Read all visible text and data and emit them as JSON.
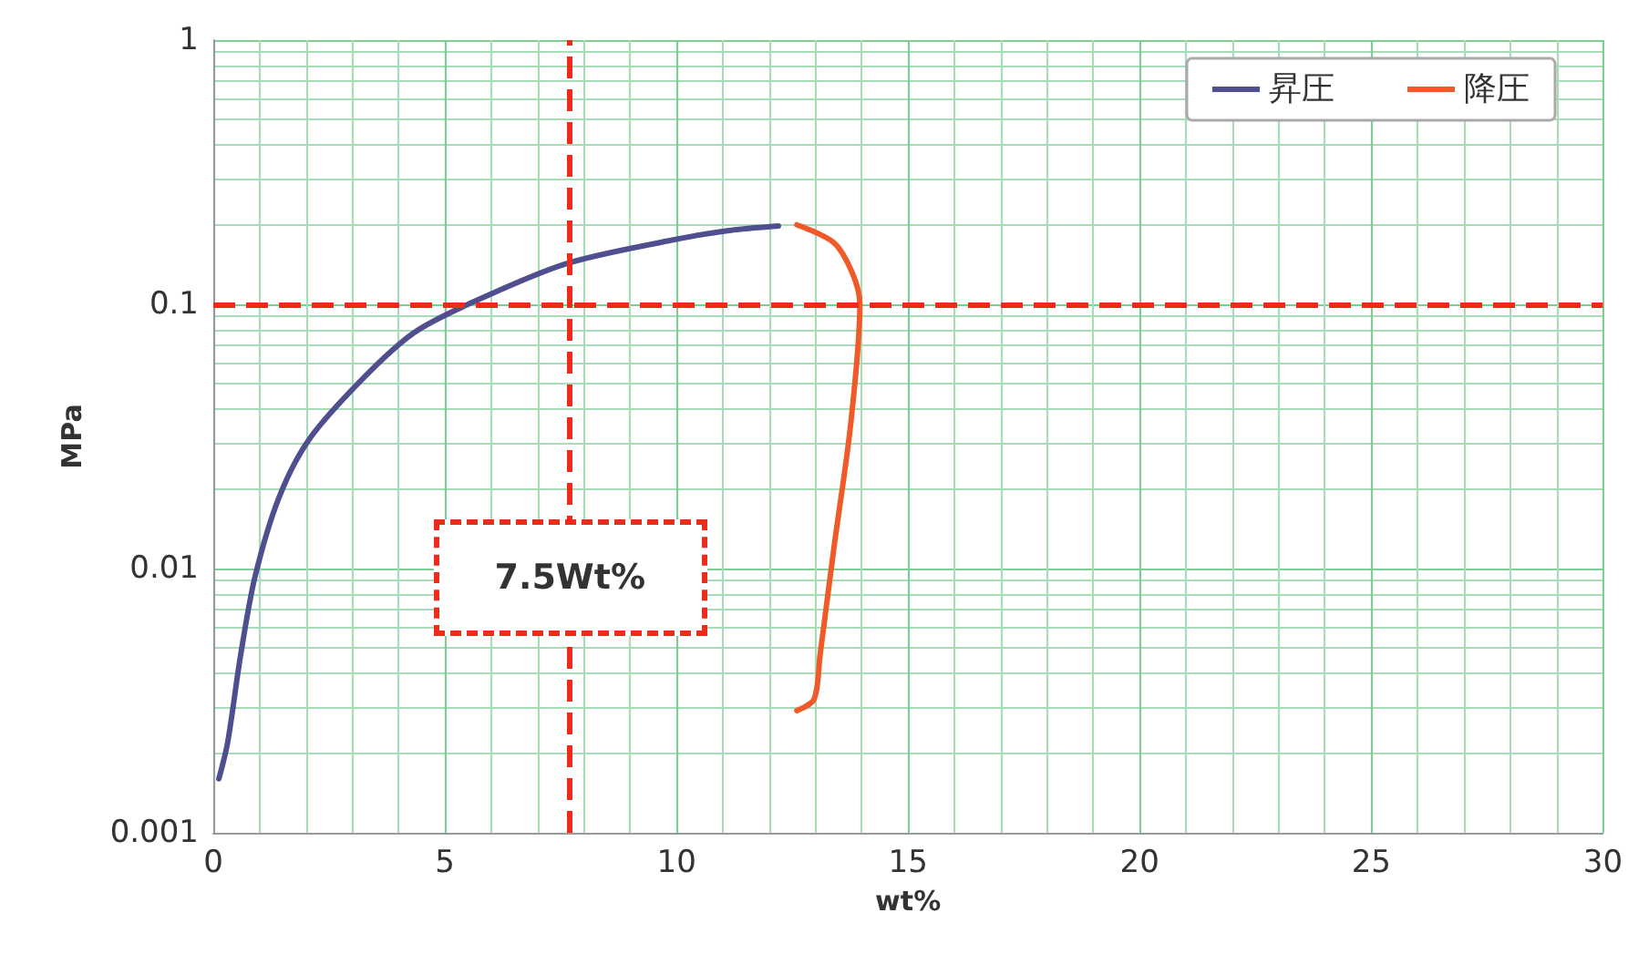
{
  "chart_data": {
    "type": "line",
    "xlabel": "wt%",
    "ylabel": "MPa",
    "log": "y",
    "grid": true,
    "legend": "top right",
    "marker": "none",
    "line_style": "solid",
    "xlim": [
      0,
      30
    ],
    "xticks": [
      0,
      {
        "value": 1,
        "label": null
      },
      {
        "value": 2,
        "label": null
      },
      {
        "value": 3,
        "label": null
      },
      {
        "value": 4,
        "label": null
      },
      5,
      {
        "value": 6,
        "label": null
      },
      {
        "value": 7,
        "label": null
      },
      {
        "value": 8,
        "label": null
      },
      {
        "value": 9,
        "label": null
      },
      10,
      {
        "value": 11,
        "label": null
      },
      {
        "value": 12,
        "label": null
      },
      {
        "value": 13,
        "label": null
      },
      {
        "value": 14,
        "label": null
      },
      15,
      {
        "value": 16,
        "label": null
      },
      {
        "value": 17,
        "label": null
      },
      {
        "value": 18,
        "label": null
      },
      {
        "value": 19,
        "label": null
      },
      20,
      {
        "value": 21,
        "label": null
      },
      {
        "value": 22,
        "label": null
      },
      {
        "value": 23,
        "label": null
      },
      {
        "value": 24,
        "label": null
      },
      25,
      {
        "value": 26,
        "label": null
      },
      {
        "value": 27,
        "label": null
      },
      {
        "value": 28,
        "label": null
      },
      {
        "value": 29,
        "label": null
      },
      30
    ],
    "ylim": [
      0.001,
      1
    ],
    "yticks": [
      0.001,
      {
        "value": 0.002,
        "label": null
      },
      {
        "value": 0.003,
        "label": null
      },
      {
        "value": 0.004,
        "label": null
      },
      {
        "value": 0.005,
        "label": null
      },
      {
        "value": 0.006,
        "label": null
      },
      {
        "value": 0.007,
        "label": null
      },
      {
        "value": 0.008,
        "label": null
      },
      {
        "value": 0.009,
        "label": null
      },
      0.01,
      {
        "value": 0.02,
        "label": null
      },
      {
        "value": 0.03,
        "label": null
      },
      {
        "value": 0.04,
        "label": null
      },
      {
        "value": 0.05,
        "label": null
      },
      {
        "value": 0.06,
        "label": null
      },
      {
        "value": 0.07,
        "label": null
      },
      {
        "value": 0.08,
        "label": null
      },
      {
        "value": 0.09,
        "label": null
      },
      0.1,
      {
        "value": 0.2,
        "label": null
      },
      {
        "value": 0.3,
        "label": null
      },
      {
        "value": 0.4,
        "label": null
      },
      {
        "value": 0.5,
        "label": null
      },
      {
        "value": 0.6,
        "label": null
      },
      {
        "value": 0.7,
        "label": null
      },
      {
        "value": 0.8,
        "label": null
      },
      {
        "value": 0.9,
        "label": null
      },
      1
    ],
    "series": [
      {
        "name": "昇圧",
        "color": "#4f4f8f",
        "x": [
          0.12,
          0.31,
          0.59,
          0.9,
          1.42,
          2.08,
          3.26,
          4.33,
          5.5,
          7.59,
          9.83,
          11.1,
          12.2
        ],
        "values": [
          0.0016,
          0.0022,
          0.0047,
          0.0093,
          0.0186,
          0.031,
          0.053,
          0.078,
          0.1,
          0.142,
          0.174,
          0.19,
          0.198
        ]
      },
      {
        "name": "降圧",
        "color": "#f05a28",
        "x": [
          12.6,
          13.4,
          13.8,
          13.96,
          13.76,
          13.4,
          13.1,
          12.97,
          12.6
        ],
        "values": [
          0.2,
          0.171,
          0.131,
          0.1,
          0.035,
          0.012,
          0.0047,
          0.0032,
          0.0029
        ]
      }
    ],
    "ref_lines": [
      {
        "axis": "x",
        "value": 7.7,
        "label": "7.5Wt%",
        "color": "#ee2a1a",
        "line_style": "dashed"
      },
      {
        "axis": "y",
        "value": 0.1,
        "color": "#ee2a1a",
        "line_style": "dashed"
      }
    ]
  }
}
